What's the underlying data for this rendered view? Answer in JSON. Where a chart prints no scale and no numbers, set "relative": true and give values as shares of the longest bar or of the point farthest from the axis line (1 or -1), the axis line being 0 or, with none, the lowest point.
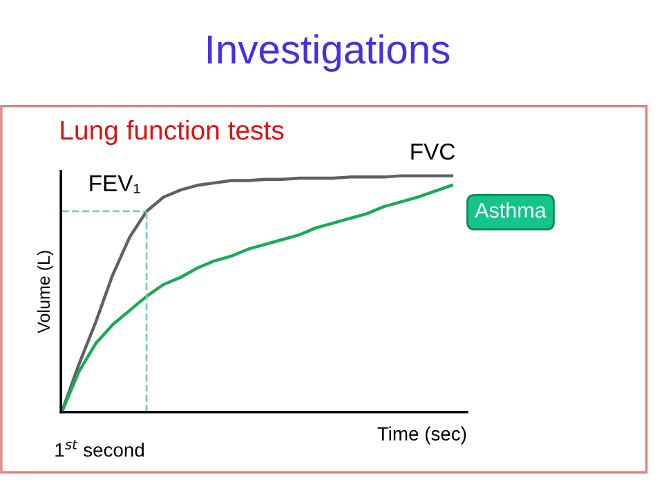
{
  "chart_data": {
    "type": "line",
    "title": "Investigations",
    "subtitle": "Lung function tests",
    "xlabel": "Time (sec)",
    "ylabel": "Volume (L)",
    "relative": true,
    "grid": false,
    "marker": "none",
    "categories": [
      null,
      null,
      null,
      null,
      null,
      null,
      null,
      null,
      null,
      null,
      null,
      null,
      null,
      null,
      null,
      null,
      null,
      null,
      null,
      null,
      null,
      null,
      null,
      null
    ],
    "series": [
      {
        "color": "#606060",
        "values": [
          0,
          0.2,
          0.38,
          0.58,
          0.74,
          0.85,
          0.91,
          0.94,
          0.96,
          0.97,
          0.98,
          0.98,
          0.985,
          0.985,
          0.99,
          0.99,
          0.99,
          0.995,
          0.995,
          0.995,
          1,
          1,
          1,
          1
        ]
      },
      {
        "color": "#1aaa55",
        "values": [
          0,
          0.17,
          0.29,
          0.37,
          0.43,
          0.49,
          0.54,
          0.57,
          0.61,
          0.64,
          0.66,
          0.69,
          0.71,
          0.73,
          0.75,
          0.78,
          0.8,
          0.82,
          0.84,
          0.87,
          0.89,
          0.91,
          0.935,
          0.96
        ]
      }
    ],
    "ref_lines": [
      {
        "axis": "y",
        "value": 0.85,
        "color": "#7fd0a0",
        "line_style": "dashed"
      }
    ],
    "annotations": [
      "FEV₁",
      "FVC",
      "Asthma",
      "1$^{st}$ second"
    ]
  }
}
